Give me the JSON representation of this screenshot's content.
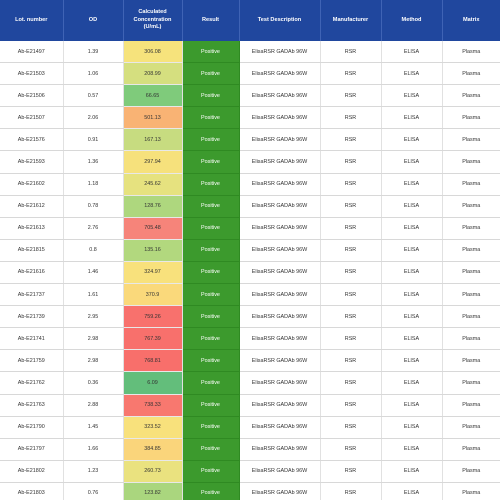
{
  "headers": {
    "lot": "Lot. number",
    "od": "OD",
    "conc": "Calculated Concentration (U/mL)",
    "result": "Result",
    "desc": "Test Description",
    "manufacturer": "Manufacturer",
    "method": "Method",
    "matrix": "Matrix"
  },
  "rows": [
    {
      "lot": "Ab-E21497",
      "od": "1.39",
      "conc": "306.08",
      "conc_color": "#f6e37c",
      "result": "Positive",
      "desc": "ElisaRSR GADAb 96W",
      "manufacturer": "RSR",
      "method": "ELISA",
      "matrix": "Plasma"
    },
    {
      "lot": "Ab-E21503",
      "od": "1.06",
      "conc": "208.99",
      "conc_color": "#d5df7f",
      "result": "Positive",
      "desc": "ElisaRSR GADAb 96W",
      "manufacturer": "RSR",
      "method": "ELISA",
      "matrix": "Plasma"
    },
    {
      "lot": "Ab-E21506",
      "od": "0.57",
      "conc": "66.65",
      "conc_color": "#7fcb7b",
      "result": "Positive",
      "desc": "ElisaRSR GADAb 96W",
      "manufacturer": "RSR",
      "method": "ELISA",
      "matrix": "Plasma"
    },
    {
      "lot": "Ab-E21507",
      "od": "2.06",
      "conc": "501.13",
      "conc_color": "#f9b374",
      "result": "Positive",
      "desc": "ElisaRSR GADAb 96W",
      "manufacturer": "RSR",
      "method": "ELISA",
      "matrix": "Plasma"
    },
    {
      "lot": "Ab-E21576",
      "od": "0.91",
      "conc": "167.13",
      "conc_color": "#c7dc80",
      "result": "Positive",
      "desc": "ElisaRSR GADAb 96W",
      "manufacturer": "RSR",
      "method": "ELISA",
      "matrix": "Plasma"
    },
    {
      "lot": "Ab-E21593",
      "od": "1.36",
      "conc": "297.94",
      "conc_color": "#f6e17c",
      "result": "Positive",
      "desc": "ElisaRSR GADAb 96W",
      "manufacturer": "RSR",
      "method": "ELISA",
      "matrix": "Plasma"
    },
    {
      "lot": "Ab-E21602",
      "od": "1.18",
      "conc": "245.62",
      "conc_color": "#e6e27f",
      "result": "Positive",
      "desc": "ElisaRSR GADAb 96W",
      "manufacturer": "RSR",
      "method": "ELISA",
      "matrix": "Plasma"
    },
    {
      "lot": "Ab-E21612",
      "od": "0.78",
      "conc": "128.76",
      "conc_color": "#aed77e",
      "result": "Positive",
      "desc": "ElisaRSR GADAb 96W",
      "manufacturer": "RSR",
      "method": "ELISA",
      "matrix": "Plasma"
    },
    {
      "lot": "Ab-E21613",
      "od": "2.76",
      "conc": "705.48",
      "conc_color": "#f6847a",
      "result": "Positive",
      "desc": "ElisaRSR GADAb 96W",
      "manufacturer": "RSR",
      "method": "ELISA",
      "matrix": "Plasma"
    },
    {
      "lot": "Ab-E21815",
      "od": "0.8",
      "conc": "135.16",
      "conc_color": "#b2d87e",
      "result": "Positive",
      "desc": "ElisaRSR GADAb 96W",
      "manufacturer": "RSR",
      "method": "ELISA",
      "matrix": "Plasma"
    },
    {
      "lot": "Ab-E21616",
      "od": "1.46",
      "conc": "324.97",
      "conc_color": "#f8e17c",
      "result": "Positive",
      "desc": "ElisaRSR GADAb 96W",
      "manufacturer": "RSR",
      "method": "ELISA",
      "matrix": "Plasma"
    },
    {
      "lot": "Ab-E21737",
      "od": "1.61",
      "conc": "370.9",
      "conc_color": "#fad97b",
      "result": "Positive",
      "desc": "ElisaRSR GADAb 96W",
      "manufacturer": "RSR",
      "method": "ELISA",
      "matrix": "Plasma"
    },
    {
      "lot": "Ab-E21739",
      "od": "2.95",
      "conc": "759.26",
      "conc_color": "#f8716d",
      "result": "Positive",
      "desc": "ElisaRSR GADAb 96W",
      "manufacturer": "RSR",
      "method": "ELISA",
      "matrix": "Plasma"
    },
    {
      "lot": "Ab-E21741",
      "od": "2.98",
      "conc": "767.39",
      "conc_color": "#f8706c",
      "result": "Positive",
      "desc": "ElisaRSR GADAb 96W",
      "manufacturer": "RSR",
      "method": "ELISA",
      "matrix": "Plasma"
    },
    {
      "lot": "Ab-E21759",
      "od": "2.98",
      "conc": "768.81",
      "conc_color": "#f86f6b",
      "result": "Positive",
      "desc": "ElisaRSR GADAb 96W",
      "manufacturer": "RSR",
      "method": "ELISA",
      "matrix": "Plasma"
    },
    {
      "lot": "Ab-E21762",
      "od": "0.36",
      "conc": "6.09",
      "conc_color": "#63be7b",
      "result": "Positive",
      "desc": "ElisaRSR GADAb 96W",
      "manufacturer": "RSR",
      "method": "ELISA",
      "matrix": "Plasma"
    },
    {
      "lot": "Ab-E21763",
      "od": "2.88",
      "conc": "738.33",
      "conc_color": "#f8786f",
      "result": "Positive",
      "desc": "ElisaRSR GADAb 96W",
      "manufacturer": "RSR",
      "method": "ELISA",
      "matrix": "Plasma"
    },
    {
      "lot": "Ab-E21790",
      "od": "1.45",
      "conc": "323.52",
      "conc_color": "#f8e17c",
      "result": "Positive",
      "desc": "ElisaRSR GADAb 96W",
      "manufacturer": "RSR",
      "method": "ELISA",
      "matrix": "Plasma"
    },
    {
      "lot": "Ab-E21797",
      "od": "1.66",
      "conc": "384.85",
      "conc_color": "#fad57b",
      "result": "Positive",
      "desc": "ElisaRSR GADAb 96W",
      "manufacturer": "RSR",
      "method": "ELISA",
      "matrix": "Plasma"
    },
    {
      "lot": "Ab-E21802",
      "od": "1.23",
      "conc": "260.73",
      "conc_color": "#eae27f",
      "result": "Positive",
      "desc": "ElisaRSR GADAb 96W",
      "manufacturer": "RSR",
      "method": "ELISA",
      "matrix": "Plasma"
    },
    {
      "lot": "Ab-E21803",
      "od": "0.76",
      "conc": "123.82",
      "conc_color": "#aad67e",
      "result": "Positive",
      "desc": "ElisaRSR GADAb 96W",
      "manufacturer": "RSR",
      "method": "ELISA",
      "matrix": "Plasma"
    }
  ]
}
